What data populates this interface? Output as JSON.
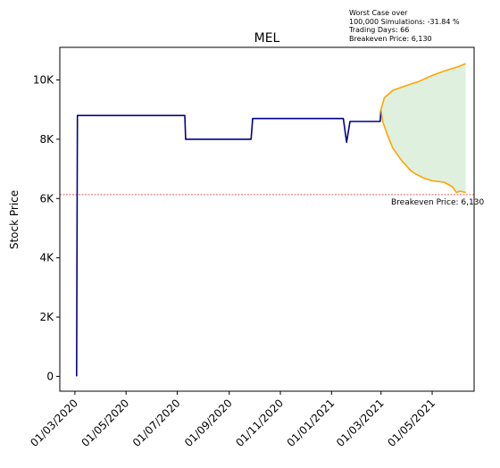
{
  "chart_data": {
    "type": "line",
    "title": "MEL",
    "ylabel": "Stock Price",
    "xlabel": "",
    "ylim": [
      -500,
      11100
    ],
    "xlim": [
      "2020-02-12",
      "2021-06-20"
    ],
    "grid": false,
    "y_ticks": [
      {
        "value": 0,
        "label": "0"
      },
      {
        "value": 2000,
        "label": "2K"
      },
      {
        "value": 4000,
        "label": "4K"
      },
      {
        "value": 6000,
        "label": "6K"
      },
      {
        "value": 8000,
        "label": "8K"
      },
      {
        "value": 10000,
        "label": "10K"
      }
    ],
    "x_ticks": [
      {
        "date": "2020-03-01",
        "label": "01/03/2020"
      },
      {
        "date": "2020-05-01",
        "label": "01/05/2020"
      },
      {
        "date": "2020-07-01",
        "label": "01/07/2020"
      },
      {
        "date": "2020-09-01",
        "label": "01/09/2020"
      },
      {
        "date": "2020-11-01",
        "label": "01/11/2020"
      },
      {
        "date": "2021-01-01",
        "label": "01/01/2021"
      },
      {
        "date": "2021-03-01",
        "label": "01/03/2021"
      },
      {
        "date": "2021-05-01",
        "label": "01/05/2021"
      }
    ],
    "series": [
      {
        "color": "#00008b",
        "points": [
          [
            "2020-03-03",
            0
          ],
          [
            "2020-03-04",
            8800
          ],
          [
            "2020-07-10",
            8800
          ],
          [
            "2020-07-11",
            8000
          ],
          [
            "2020-09-27",
            8000
          ],
          [
            "2020-09-29",
            8700
          ],
          [
            "2020-12-20",
            8700
          ],
          [
            "2021-01-15",
            8700
          ],
          [
            "2021-01-19",
            7900
          ],
          [
            "2021-01-23",
            8600
          ],
          [
            "2021-02-28",
            8600
          ],
          [
            "2021-03-01",
            9000
          ]
        ]
      },
      {
        "color": "#ffa500",
        "points": [
          [
            "2021-03-01",
            9000
          ],
          [
            "2021-03-05",
            9400
          ],
          [
            "2021-03-15",
            9650
          ],
          [
            "2021-03-30",
            9800
          ],
          [
            "2021-04-15",
            9950
          ],
          [
            "2021-05-01",
            10150
          ],
          [
            "2021-05-15",
            10300
          ],
          [
            "2021-06-01",
            10450
          ],
          [
            "2021-06-10",
            10550
          ]
        ]
      },
      {
        "color": "#ffa500",
        "points": [
          [
            "2021-03-01",
            9000
          ],
          [
            "2021-03-03",
            8600
          ],
          [
            "2021-03-08",
            8200
          ],
          [
            "2021-03-15",
            7700
          ],
          [
            "2021-03-25",
            7300
          ],
          [
            "2021-04-05",
            6950
          ],
          [
            "2021-04-10",
            6850
          ],
          [
            "2021-04-20",
            6700
          ],
          [
            "2021-05-01",
            6600
          ],
          [
            "2021-05-15",
            6550
          ],
          [
            "2021-05-25",
            6400
          ],
          [
            "2021-05-30",
            6200
          ],
          [
            "2021-06-03",
            6250
          ],
          [
            "2021-06-10",
            6200
          ]
        ]
      }
    ],
    "fill_color": "#dff0df",
    "breakeven": {
      "value": 6130,
      "label": "Breakeven Price: 6,130",
      "color": "#cc0000"
    },
    "annotation": [
      "Worst Case over",
      "100,000 Simulations: -31.84 %",
      "Trading Days: 66",
      "Breakeven Price: 6,130"
    ]
  }
}
